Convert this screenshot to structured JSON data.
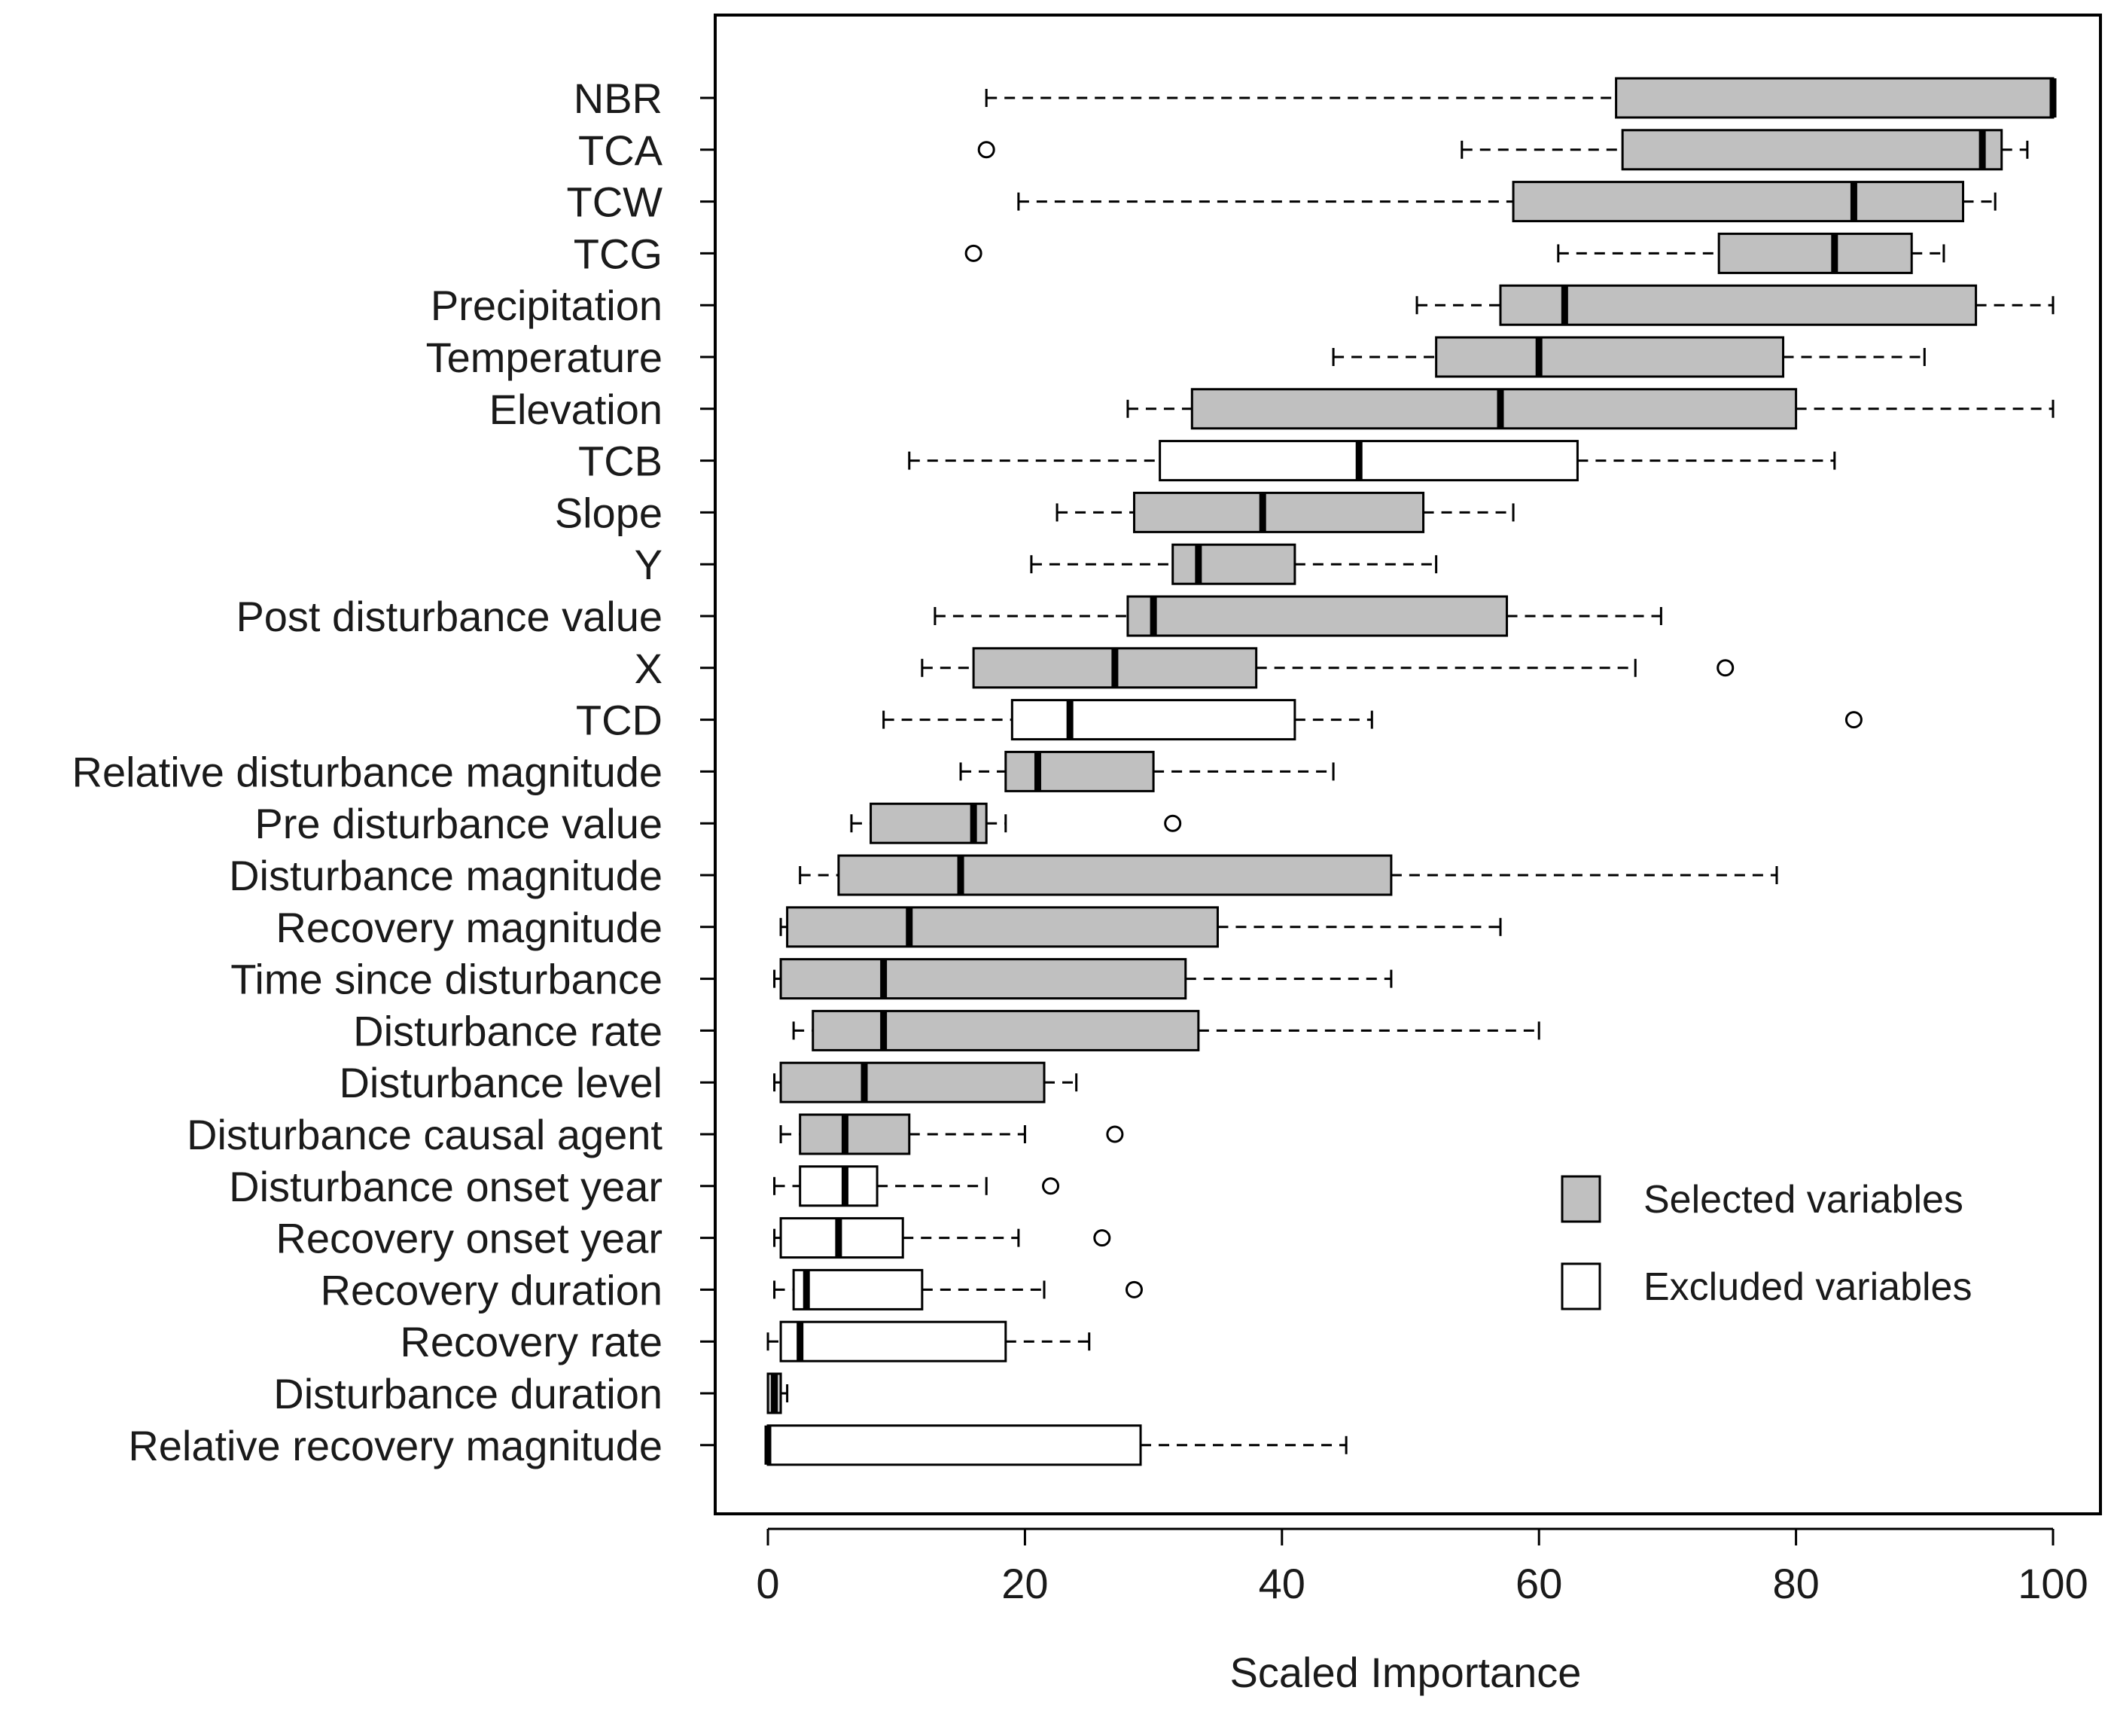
{
  "chart_data": {
    "type": "boxplot",
    "orientation": "horizontal",
    "title": "",
    "xlabel": "Scaled Importance",
    "ylabel": "",
    "xlim": [
      0,
      100
    ],
    "xticks": [
      "0",
      "20",
      "40",
      "60",
      "80",
      "100"
    ],
    "grid": false,
    "legend_position": "bottom-right",
    "legend": [
      {
        "key": "selected",
        "label": "Selected variables"
      },
      {
        "key": "excluded",
        "label": "Excluded variables"
      }
    ],
    "colors": {
      "selected": "#c0c0c0",
      "excluded": "#ffffff",
      "stroke": "#000000"
    },
    "series": [
      {
        "name": "NBR",
        "group": "selected",
        "whisker_low": 17,
        "q1": 66,
        "median": 100,
        "q3": 100,
        "whisker_high": 100,
        "outliers": []
      },
      {
        "name": "TCA",
        "group": "selected",
        "whisker_low": 54,
        "q1": 66.5,
        "median": 94.5,
        "q3": 96,
        "whisker_high": 98,
        "outliers": [
          17
        ]
      },
      {
        "name": "TCW",
        "group": "selected",
        "whisker_low": 19.5,
        "q1": 58,
        "median": 84.5,
        "q3": 93,
        "whisker_high": 95.5,
        "outliers": []
      },
      {
        "name": "TCG",
        "group": "selected",
        "whisker_low": 61.5,
        "q1": 74,
        "median": 83,
        "q3": 89,
        "whisker_high": 91.5,
        "outliers": [
          16
        ]
      },
      {
        "name": "Precipitation",
        "group": "selected",
        "whisker_low": 50.5,
        "q1": 57,
        "median": 62,
        "q3": 94,
        "whisker_high": 100,
        "outliers": []
      },
      {
        "name": "Temperature",
        "group": "selected",
        "whisker_low": 44,
        "q1": 52,
        "median": 60,
        "q3": 79,
        "whisker_high": 90,
        "outliers": []
      },
      {
        "name": "Elevation",
        "group": "selected",
        "whisker_low": 28,
        "q1": 33,
        "median": 57,
        "q3": 80,
        "whisker_high": 100,
        "outliers": []
      },
      {
        "name": "TCB",
        "group": "excluded",
        "whisker_low": 11,
        "q1": 30.5,
        "median": 46,
        "q3": 63,
        "whisker_high": 83,
        "outliers": []
      },
      {
        "name": "Slope",
        "group": "selected",
        "whisker_low": 22.5,
        "q1": 28.5,
        "median": 38.5,
        "q3": 51,
        "whisker_high": 58,
        "outliers": []
      },
      {
        "name": "Y",
        "group": "selected",
        "whisker_low": 20.5,
        "q1": 31.5,
        "median": 33.5,
        "q3": 41,
        "whisker_high": 52,
        "outliers": []
      },
      {
        "name": "Post disturbance value",
        "group": "selected",
        "whisker_low": 13,
        "q1": 28,
        "median": 30,
        "q3": 57.5,
        "whisker_high": 69.5,
        "outliers": []
      },
      {
        "name": "X",
        "group": "selected",
        "whisker_low": 12,
        "q1": 16,
        "median": 27,
        "q3": 38,
        "whisker_high": 67.5,
        "outliers": [
          74.5
        ]
      },
      {
        "name": "TCD",
        "group": "excluded",
        "whisker_low": 9,
        "q1": 19,
        "median": 23.5,
        "q3": 41,
        "whisker_high": 47,
        "outliers": [
          84.5
        ]
      },
      {
        "name": "Relative disturbance magnitude",
        "group": "selected",
        "whisker_low": 15,
        "q1": 18.5,
        "median": 21,
        "q3": 30,
        "whisker_high": 44,
        "outliers": []
      },
      {
        "name": "Pre disturbance value",
        "group": "selected",
        "whisker_low": 6.5,
        "q1": 8,
        "median": 16,
        "q3": 17,
        "whisker_high": 18.5,
        "outliers": [
          31.5
        ]
      },
      {
        "name": "Disturbance magnitude",
        "group": "selected",
        "whisker_low": 2.5,
        "q1": 5.5,
        "median": 15,
        "q3": 48.5,
        "whisker_high": 78.5,
        "outliers": []
      },
      {
        "name": "Recovery magnitude",
        "group": "selected",
        "whisker_low": 1,
        "q1": 1.5,
        "median": 11,
        "q3": 35,
        "whisker_high": 57,
        "outliers": []
      },
      {
        "name": "Time since disturbance",
        "group": "selected",
        "whisker_low": 0.5,
        "q1": 1,
        "median": 9,
        "q3": 32.5,
        "whisker_high": 48.5,
        "outliers": []
      },
      {
        "name": "Disturbance rate",
        "group": "selected",
        "whisker_low": 2,
        "q1": 3.5,
        "median": 9,
        "q3": 33.5,
        "whisker_high": 60,
        "outliers": []
      },
      {
        "name": "Disturbance level",
        "group": "selected",
        "whisker_low": 0.5,
        "q1": 1,
        "median": 7.5,
        "q3": 21.5,
        "whisker_high": 24,
        "outliers": []
      },
      {
        "name": "Disturbance causal agent",
        "group": "selected",
        "whisker_low": 1,
        "q1": 2.5,
        "median": 6,
        "q3": 11,
        "whisker_high": 20,
        "outliers": [
          27
        ]
      },
      {
        "name": "Disturbance onset year",
        "group": "excluded",
        "whisker_low": 0.5,
        "q1": 2.5,
        "median": 6,
        "q3": 8.5,
        "whisker_high": 17,
        "outliers": [
          22
        ]
      },
      {
        "name": "Recovery onset year",
        "group": "excluded",
        "whisker_low": 0.5,
        "q1": 1,
        "median": 5.5,
        "q3": 10.5,
        "whisker_high": 19.5,
        "outliers": [
          26
        ]
      },
      {
        "name": "Recovery duration",
        "group": "excluded",
        "whisker_low": 0.5,
        "q1": 2,
        "median": 3,
        "q3": 12,
        "whisker_high": 21.5,
        "outliers": [
          28.5
        ]
      },
      {
        "name": "Recovery rate",
        "group": "excluded",
        "whisker_low": 0,
        "q1": 1,
        "median": 2.5,
        "q3": 18.5,
        "whisker_high": 25,
        "outliers": []
      },
      {
        "name": "Disturbance duration",
        "group": "selected",
        "whisker_low": 0,
        "q1": 0,
        "median": 0.5,
        "q3": 1,
        "whisker_high": 1.5,
        "outliers": []
      },
      {
        "name": "Relative recovery magnitude",
        "group": "excluded",
        "whisker_low": 0,
        "q1": 0,
        "median": 0,
        "q3": 29,
        "whisker_high": 45,
        "outliers": []
      }
    ]
  }
}
